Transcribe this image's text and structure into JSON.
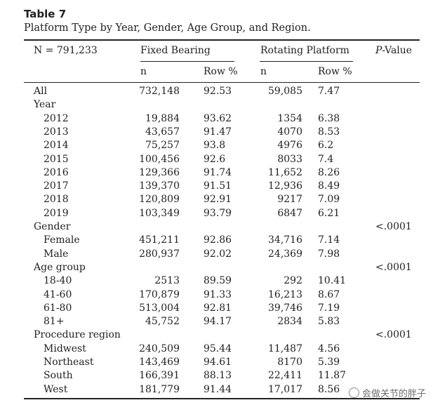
{
  "table": {
    "label": "Table 7",
    "caption": "Platform Type by Year, Gender, Age Group, and Region.",
    "header": {
      "n_total": "N = 791,233",
      "fixed": "Fixed Bearing",
      "rotating": "Rotating Platform",
      "p_prefix": "P",
      "p_suffix": "-Value",
      "sub_n": "n",
      "sub_row": "Row %"
    },
    "rows": [
      {
        "label": "All",
        "indent": false,
        "fn": "732,148",
        "fp": "92.53",
        "rn": "59,085",
        "rp": "7.47",
        "p": ""
      },
      {
        "label": "Year",
        "indent": false,
        "fn": "",
        "fp": "",
        "rn": "",
        "rp": "",
        "p": ""
      },
      {
        "label": "2012",
        "indent": true,
        "fn": "19,884",
        "fp": "93.62",
        "rn": "1354",
        "rp": "6.38",
        "p": ""
      },
      {
        "label": "2013",
        "indent": true,
        "fn": "43,657",
        "fp": "91.47",
        "rn": "4070",
        "rp": "8.53",
        "p": ""
      },
      {
        "label": "2014",
        "indent": true,
        "fn": "75,257",
        "fp": "93.8",
        "rn": "4976",
        "rp": "6.2",
        "p": ""
      },
      {
        "label": "2015",
        "indent": true,
        "fn": "100,456",
        "fp": "92.6",
        "rn": "8033",
        "rp": "7.4",
        "p": ""
      },
      {
        "label": "2016",
        "indent": true,
        "fn": "129,366",
        "fp": "91.74",
        "rn": "11,652",
        "rp": "8.26",
        "p": ""
      },
      {
        "label": "2017",
        "indent": true,
        "fn": "139,370",
        "fp": "91.51",
        "rn": "12,936",
        "rp": "8.49",
        "p": ""
      },
      {
        "label": "2018",
        "indent": true,
        "fn": "120,809",
        "fp": "92.91",
        "rn": "9217",
        "rp": "7.09",
        "p": ""
      },
      {
        "label": "2019",
        "indent": true,
        "fn": "103,349",
        "fp": "93.79",
        "rn": "6847",
        "rp": "6.21",
        "p": ""
      },
      {
        "label": "Gender",
        "indent": false,
        "fn": "",
        "fp": "",
        "rn": "",
        "rp": "",
        "p": "<.0001"
      },
      {
        "label": "Female",
        "indent": true,
        "fn": "451,211",
        "fp": "92.86",
        "rn": "34,716",
        "rp": "7.14",
        "p": ""
      },
      {
        "label": "Male",
        "indent": true,
        "fn": "280,937",
        "fp": "92.02",
        "rn": "24,369",
        "rp": "7.98",
        "p": ""
      },
      {
        "label": "Age group",
        "indent": false,
        "fn": "",
        "fp": "",
        "rn": "",
        "rp": "",
        "p": "<.0001"
      },
      {
        "label": "18-40",
        "indent": true,
        "fn": "2513",
        "fp": "89.59",
        "rn": "292",
        "rp": "10.41",
        "p": ""
      },
      {
        "label": "41-60",
        "indent": true,
        "fn": "170,879",
        "fp": "91.33",
        "rn": "16,213",
        "rp": "8.67",
        "p": ""
      },
      {
        "label": "61-80",
        "indent": true,
        "fn": "513,004",
        "fp": "92.81",
        "rn": "39,746",
        "rp": "7.19",
        "p": ""
      },
      {
        "label": "81+",
        "indent": true,
        "fn": "45,752",
        "fp": "94.17",
        "rn": "2834",
        "rp": "5.83",
        "p": ""
      },
      {
        "label": "Procedure region",
        "indent": false,
        "fn": "",
        "fp": "",
        "rn": "",
        "rp": "",
        "p": "<.0001"
      },
      {
        "label": "Midwest",
        "indent": true,
        "fn": "240,509",
        "fp": "95.44",
        "rn": "11,487",
        "rp": "4.56",
        "p": ""
      },
      {
        "label": "Northeast",
        "indent": true,
        "fn": "143,469",
        "fp": "94.61",
        "rn": "8170",
        "rp": "5.39",
        "p": ""
      },
      {
        "label": "South",
        "indent": true,
        "fn": "166,391",
        "fp": "88.13",
        "rn": "22,411",
        "rp": "11.87",
        "p": ""
      },
      {
        "label": "West",
        "indent": true,
        "fn": "181,779",
        "fp": "91.44",
        "rn": "17,017",
        "rp": "8.56",
        "p": ""
      }
    ]
  },
  "watermark": "会做关节的胖子"
}
